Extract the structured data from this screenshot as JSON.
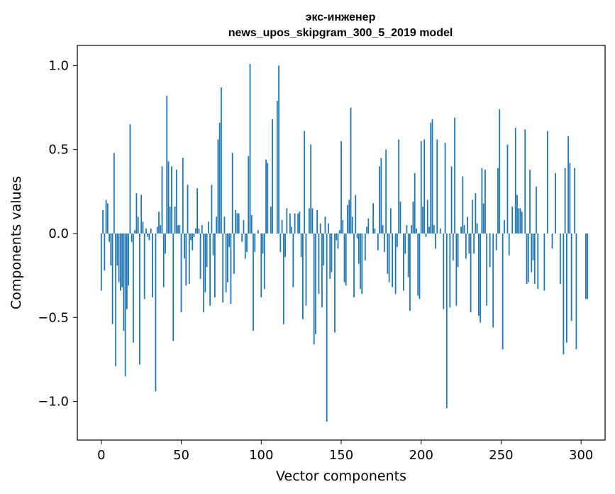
{
  "chart_data": {
    "type": "bar",
    "title_line1": "экс-инженер",
    "title_line2": "news_upos_skipgram_300_5_2019 model",
    "xlabel": "Vector components",
    "ylabel": "Components values",
    "xlim": [
      -15,
      315
    ],
    "ylim": [
      -1.23,
      1.12
    ],
    "x_ticks": [
      0,
      50,
      100,
      150,
      200,
      250,
      300
    ],
    "x_tick_labels": [
      "0",
      "50",
      "100",
      "150",
      "200",
      "250",
      "300"
    ],
    "y_ticks": [
      -1.0,
      -0.5,
      0.0,
      0.5,
      1.0
    ],
    "y_tick_labels": [
      "−1.0",
      "−0.5",
      "0.0",
      "0.5",
      "1.0"
    ],
    "bar_color": "#1f77b4",
    "grid": false,
    "legend": "none",
    "values": [
      -0.34,
      0.14,
      -0.22,
      0.2,
      0.18,
      -0.05,
      -0.19,
      -0.54,
      0.48,
      -0.79,
      -0.19,
      -0.29,
      -0.34,
      -0.32,
      -0.58,
      -0.85,
      -0.45,
      -0.31,
      0.65,
      -0.05,
      -0.65,
      0.02,
      0.24,
      0.1,
      -0.78,
      0.23,
      0.07,
      -0.39,
      0.03,
      -0.02,
      -0.04,
      0.03,
      -0.38,
      0.0,
      -0.94,
      0.04,
      0.13,
      0.05,
      0.4,
      -0.32,
      -0.12,
      0.82,
      0.43,
      0.16,
      0.4,
      -0.64,
      0.16,
      0.38,
      0.05,
      0.05,
      -0.47,
      0.45,
      -0.15,
      -0.31,
      0.29,
      -0.3,
      -0.04,
      -0.1,
      -0.02,
      0.03,
      0.27,
      0.03,
      -0.27,
      0.05,
      -0.47,
      -0.35,
      -0.2,
      0.07,
      -0.43,
      0.29,
      -0.13,
      -0.38,
      0.1,
      0.56,
      0.66,
      0.87,
      -0.41,
      0.1,
      -0.35,
      -0.29,
      -0.08,
      -0.42,
      0.48,
      -0.24,
      0.14,
      0.12,
      0.12,
      0.0,
      -0.05,
      0.08,
      -0.15,
      -0.11,
      0.46,
      1.01,
      0.11,
      -0.58,
      -0.11,
      0.0,
      0.02,
      0.0,
      -0.38,
      -0.12,
      -0.33,
      0.44,
      0.42,
      0.0,
      0.16,
      0.68,
      0.0,
      0.0,
      0.79,
      1.0,
      -0.11,
      0.08,
      -0.54,
      -0.14,
      0.15,
      0.0,
      0.12,
      0.04,
      -0.32,
      0.12,
      0.0,
      0.12,
      0.13,
      -0.14,
      -0.51,
      0.61,
      -0.43,
      0.0,
      0.15,
      0.53,
      0.15,
      -0.66,
      -0.6,
      0.14,
      -0.36,
      0.06,
      -0.44,
      -0.19,
      0.1,
      -1.12,
      0.06,
      -0.27,
      -0.23,
      0.0,
      -0.59,
      -0.04,
      -0.09,
      0.02,
      0.55,
      0.08,
      -0.29,
      -0.31,
      0.17,
      0.2,
      0.75,
      0.1,
      -0.38,
      0.23,
      -0.03,
      -0.18,
      -0.33,
      -0.36,
      0.0,
      -0.16,
      0.04,
      0.09,
      0.0,
      0.0,
      0.18,
      0.03,
      0.0,
      -0.1,
      0.4,
      0.45,
      0.05,
      -0.11,
      0.5,
      -0.24,
      -0.29,
      0.15,
      -0.32,
      0.0,
      -0.36,
      -0.08,
      0.56,
      0.19,
      0.0,
      -0.34,
      -0.12,
      0.05,
      -0.26,
      -0.46,
      0.05,
      0.19,
      0.36,
      0.03,
      -0.37,
      -0.39,
      0.55,
      0.16,
      0.56,
      -0.02,
      0.2,
      0.04,
      0.66,
      0.68,
      0.05,
      -0.09,
      0.56,
      0.0,
      0.03,
      0.0,
      -0.45,
      0.54,
      -1.04,
      0.0,
      -0.44,
      0.4,
      -0.16,
      0.69,
      -0.43,
      -0.2,
      0.0,
      0.04,
      0.34,
      0.05,
      -0.15,
      0.1,
      -0.12,
      -0.47,
      0.2,
      -0.12,
      0.24,
      0.06,
      -0.49,
      -0.53,
      0.39,
      0.18,
      0.38,
      -0.43,
      0.0,
      -0.2,
      0.0,
      -0.56,
      0.0,
      -0.1,
      0.39,
      0.74,
      0.0,
      -0.69,
      0.08,
      0.0,
      0.53,
      -0.13,
      0.0,
      0.16,
      0.0,
      0.63,
      0.23,
      0.15,
      0.15,
      0.13,
      0.0,
      0.62,
      -0.3,
      -0.29,
      0.38,
      -0.23,
      -0.16,
      -0.3,
      0.28,
      -0.33,
      0.0,
      0.0,
      0.0,
      -0.34,
      0.0,
      0.61,
      0.0,
      0.0,
      -0.09,
      0.0,
      0.36,
      0.0,
      0.0,
      -0.3,
      0.0,
      -0.72,
      0.39,
      -0.65,
      0.58,
      0.42,
      -0.52,
      0.0,
      0.39,
      -0.69,
      0.0,
      0.0,
      0.0,
      0.0,
      0.0,
      -0.39,
      -0.39,
      0.0,
      0.0,
      0.0,
      0.0,
      0.0,
      0.0
    ]
  }
}
